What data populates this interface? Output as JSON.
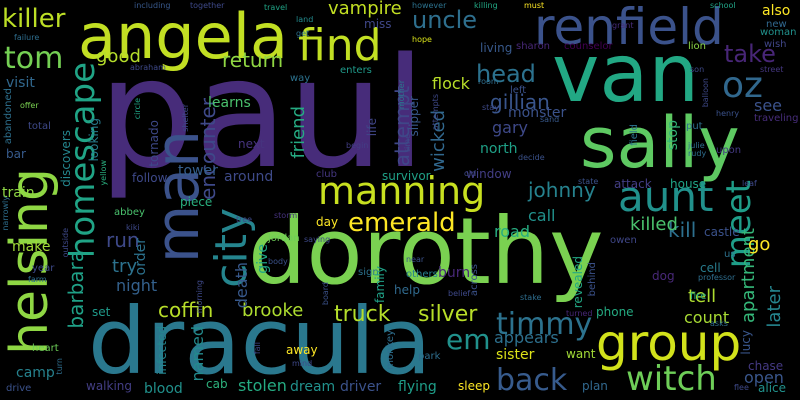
{
  "words": [
    {
      "text": "paul",
      "color": "#472c7a"
    },
    {
      "text": "dorothy",
      "color": "#7ad151"
    },
    {
      "text": "dracula",
      "color": "#2a788e"
    },
    {
      "text": "van",
      "color": "#22a884"
    },
    {
      "text": "sally",
      "color": "#5ec962"
    },
    {
      "text": "angela",
      "color": "#c2df23"
    },
    {
      "text": "renfield",
      "color": "#3b528b"
    },
    {
      "text": "man",
      "color": "#3b528b"
    },
    {
      "text": "helsing",
      "color": "#8fd744"
    },
    {
      "text": "group",
      "color": "#d2e21b"
    },
    {
      "text": "manning",
      "color": "#c8e020"
    },
    {
      "text": "aunt",
      "color": "#21918c"
    },
    {
      "text": "find",
      "color": "#c2df23"
    },
    {
      "text": "city",
      "color": "#25858e"
    },
    {
      "text": "homescape",
      "color": "#20a486"
    },
    {
      "text": "witch",
      "color": "#6ece58"
    },
    {
      "text": "meet",
      "color": "#1f9e89"
    },
    {
      "text": "emerald",
      "color": "#fde725"
    },
    {
      "text": "timmy",
      "color": "#2c728e"
    },
    {
      "text": "oz",
      "color": "#31688e"
    },
    {
      "text": "tom",
      "color": "#75d054"
    },
    {
      "text": "killer",
      "color": "#bddf26"
    },
    {
      "text": "uncle",
      "color": "#2e6f8e"
    },
    {
      "text": "back",
      "color": "#375b8d"
    },
    {
      "text": "head",
      "color": "#2c728e"
    },
    {
      "text": "take",
      "color": "#482677"
    },
    {
      "text": "johnny",
      "color": "#26828e"
    },
    {
      "text": "return",
      "color": "#90d743"
    },
    {
      "text": "coffin",
      "color": "#b8de29"
    },
    {
      "text": "truck",
      "color": "#b5de2b"
    },
    {
      "text": "silver",
      "color": "#b8de29"
    },
    {
      "text": "em",
      "color": "#21918c"
    },
    {
      "text": "gillian",
      "color": "#39558c"
    },
    {
      "text": "barbara",
      "color": "#1fa187"
    },
    {
      "text": "encounter",
      "color": "#3e4989"
    },
    {
      "text": "attempt",
      "color": "#3f4788"
    },
    {
      "text": "run",
      "color": "#3e4989"
    },
    {
      "text": "kill",
      "color": "#2d708e"
    },
    {
      "text": "killed",
      "color": "#4ac16d"
    },
    {
      "text": "apartment",
      "color": "#35b779"
    },
    {
      "text": "later",
      "color": "#25858e"
    },
    {
      "text": "go",
      "color": "#fde725"
    },
    {
      "text": "call",
      "color": "#21918c"
    },
    {
      "text": "tell",
      "color": "#addc30"
    },
    {
      "text": "open",
      "color": "#39568c"
    },
    {
      "text": "count",
      "color": "#a8db34"
    },
    {
      "text": "see",
      "color": "#3b528b"
    },
    {
      "text": "good",
      "color": "#b5de2b"
    },
    {
      "text": "try",
      "color": "#2c728e"
    },
    {
      "text": "night",
      "color": "#34618d"
    },
    {
      "text": "brooke",
      "color": "#addc30"
    },
    {
      "text": "friend",
      "color": "#25ab82"
    },
    {
      "text": "vampire",
      "color": "#c2df23"
    },
    {
      "text": "visit",
      "color": "#31688e"
    },
    {
      "text": "living",
      "color": "#38598c"
    },
    {
      "text": "flock",
      "color": "#b8de29"
    },
    {
      "text": "gary",
      "color": "#3e4989"
    },
    {
      "text": "wicked",
      "color": "#31688e"
    },
    {
      "text": "road",
      "color": "#27ad81"
    },
    {
      "text": "appears",
      "color": "#2d708e"
    },
    {
      "text": "sister",
      "color": "#dde318"
    },
    {
      "text": "stolen",
      "color": "#25ab82"
    },
    {
      "text": "dream",
      "color": "#21918c"
    },
    {
      "text": "driver",
      "color": "#3b528b"
    },
    {
      "text": "flying",
      "color": "#1f9e89"
    },
    {
      "text": "sleep",
      "color": "#fde725"
    },
    {
      "text": "make",
      "color": "#a2da37"
    },
    {
      "text": "learns",
      "color": "#4ac16d"
    },
    {
      "text": "tower",
      "color": "#355f8d"
    },
    {
      "text": "around",
      "color": "#3e4a89"
    },
    {
      "text": "death",
      "color": "#38598c"
    },
    {
      "text": "named",
      "color": "#238a8d"
    },
    {
      "text": "away",
      "color": "#fde725"
    },
    {
      "text": "blood",
      "color": "#21918c"
    },
    {
      "text": "cab",
      "color": "#2db27d"
    },
    {
      "text": "infected",
      "color": "#24868e"
    },
    {
      "text": "walking",
      "color": "#433e85"
    },
    {
      "text": "camp",
      "color": "#26828e"
    },
    {
      "text": "set",
      "color": "#1f9a8a"
    },
    {
      "text": "train",
      "color": "#8fd744"
    },
    {
      "text": "bar",
      "color": "#375b8d"
    },
    {
      "text": "order",
      "color": "#2c728e"
    },
    {
      "text": "give",
      "color": "#20a486"
    },
    {
      "text": "day",
      "color": "#fde725"
    },
    {
      "text": "help",
      "color": "#306a8e"
    },
    {
      "text": "burn",
      "color": "#482878"
    },
    {
      "text": "plan",
      "color": "#31688e"
    },
    {
      "text": "want",
      "color": "#a2da37"
    },
    {
      "text": "monster",
      "color": "#3b528b"
    },
    {
      "text": "north",
      "color": "#1fa187"
    },
    {
      "text": "house",
      "color": "#20a486"
    },
    {
      "text": "attack",
      "color": "#433e85"
    },
    {
      "text": "stop",
      "color": "#35b779"
    },
    {
      "text": "cell",
      "color": "#287c8e"
    },
    {
      "text": "lucy",
      "color": "#39568c"
    },
    {
      "text": "phone",
      "color": "#25ab82"
    },
    {
      "text": "revealed",
      "color": "#22a884"
    },
    {
      "text": "next",
      "color": "#46337e"
    },
    {
      "text": "follow",
      "color": "#3e4989"
    },
    {
      "text": "piece",
      "color": "#29af7f"
    },
    {
      "text": "survivor",
      "color": "#1fa187"
    },
    {
      "text": "window",
      "color": "#433e85"
    },
    {
      "text": "castle",
      "color": "#3b528b"
    },
    {
      "text": "chase",
      "color": "#443983"
    },
    {
      "text": "alice",
      "color": "#21918c"
    },
    {
      "text": "also",
      "color": "#fde725"
    },
    {
      "text": "new",
      "color": "#31688e"
    },
    {
      "text": "woman",
      "color": "#21918c"
    },
    {
      "text": "wish",
      "color": "#404688"
    },
    {
      "text": "life",
      "color": "#404688"
    },
    {
      "text": "slipper",
      "color": "#38598c"
    },
    {
      "text": "abbey",
      "color": "#4ac16d"
    },
    {
      "text": "jordan",
      "color": "#6ece58"
    },
    {
      "text": "storm",
      "color": "#46337e"
    },
    {
      "text": "tornado",
      "color": "#3e4989"
    },
    {
      "text": "looking",
      "color": "#287c8e"
    },
    {
      "text": "discovers",
      "color": "#24868e"
    },
    {
      "text": "outside",
      "color": "#3e4989"
    },
    {
      "text": "abandoned",
      "color": "#2d708e"
    },
    {
      "text": "total",
      "color": "#3e4989"
    },
    {
      "text": "offer",
      "color": "#7ad151"
    },
    {
      "text": "miss",
      "color": "#3f4788"
    },
    {
      "text": "however",
      "color": "#2c728e"
    },
    {
      "text": "killing",
      "color": "#22a884"
    },
    {
      "text": "must",
      "color": "#fde725"
    },
    {
      "text": "school",
      "color": "#20a486"
    },
    {
      "text": "travel",
      "color": "#20a486"
    },
    {
      "text": "including",
      "color": "#38598c"
    },
    {
      "text": "together",
      "color": "#3e4989"
    },
    {
      "text": "failure",
      "color": "#2e6e8e"
    },
    {
      "text": "land",
      "color": "#238a8d"
    },
    {
      "text": "enters",
      "color": "#1f9a8a"
    },
    {
      "text": "get",
      "color": "#2c728e"
    },
    {
      "text": "hope",
      "color": "#d8e219"
    },
    {
      "text": "sharon",
      "color": "#482878"
    },
    {
      "text": "counselor",
      "color": "#440154"
    },
    {
      "text": "grant",
      "color": "#472d7b"
    },
    {
      "text": "lion",
      "color": "#8bd646"
    },
    {
      "text": "son",
      "color": "#3e4989"
    },
    {
      "text": "street",
      "color": "#453781"
    },
    {
      "text": "balloon",
      "color": "#3e4989"
    },
    {
      "text": "traveling",
      "color": "#472d7b"
    },
    {
      "text": "henry",
      "color": "#3b528b"
    },
    {
      "text": "abraham",
      "color": "#3e4989"
    },
    {
      "text": "yellow",
      "color": "#29af7f"
    },
    {
      "text": "circle",
      "color": "#20a486"
    },
    {
      "text": "shelter",
      "color": "#3e4989"
    },
    {
      "text": "sand",
      "color": "#38598c"
    },
    {
      "text": "room",
      "color": "#2e6e8e"
    },
    {
      "text": "mother",
      "color": "#2a788e"
    },
    {
      "text": "begin",
      "color": "#433e85"
    },
    {
      "text": "put",
      "color": "#2e6e8e"
    },
    {
      "text": "field",
      "color": "#2c728e"
    },
    {
      "text": "julie",
      "color": "#2e6e8e"
    },
    {
      "text": "rudy",
      "color": "#2e6e8e"
    },
    {
      "text": "upon",
      "color": "#443a83"
    },
    {
      "text": "decide",
      "color": "#3b528b"
    },
    {
      "text": "leaf",
      "color": "#3e4989"
    },
    {
      "text": "us",
      "color": "#2c728e"
    },
    {
      "text": "owen",
      "color": "#3f4788"
    },
    {
      "text": "near",
      "color": "#3b528b"
    },
    {
      "text": "sign",
      "color": "#2c728e"
    },
    {
      "text": "others",
      "color": "#26828e"
    },
    {
      "text": "dog",
      "color": "#482878"
    },
    {
      "text": "professor",
      "color": "#2e6e8e"
    },
    {
      "text": "fire",
      "color": "#25ab82"
    },
    {
      "text": "asks",
      "color": "#2e6e8e"
    },
    {
      "text": "turned",
      "color": "#482878"
    },
    {
      "text": "stake",
      "color": "#2e6e8e"
    },
    {
      "text": "belief",
      "color": "#3e4989"
    },
    {
      "text": "park",
      "color": "#2e6e8e"
    },
    {
      "text": "across",
      "color": "#3b528b"
    },
    {
      "text": "behind",
      "color": "#3b528b"
    },
    {
      "text": "family",
      "color": "#1fa187"
    },
    {
      "text": "monkey",
      "color": "#2e6e8e"
    },
    {
      "text": "mind",
      "color": "#3e4989"
    },
    {
      "text": "fall",
      "color": "#3e4989"
    },
    {
      "text": "board",
      "color": "#3b528b"
    },
    {
      "text": "saying",
      "color": "#3e4989"
    },
    {
      "text": "body",
      "color": "#3b528b"
    },
    {
      "text": "tree",
      "color": "#3e4989"
    },
    {
      "text": "morning",
      "color": "#3e4989"
    },
    {
      "text": "kiki",
      "color": "#3e4989"
    },
    {
      "text": "year",
      "color": "#3e4989"
    },
    {
      "text": "farm",
      "color": "#2e6e8e"
    },
    {
      "text": "narrowly",
      "color": "#2e6e8e"
    },
    {
      "text": "heart",
      "color": "#6ece58"
    },
    {
      "text": "drive",
      "color": "#3b528b"
    },
    {
      "text": "turn",
      "color": "#2e6e8e"
    },
    {
      "text": "flee",
      "color": "#3e4989"
    },
    {
      "text": "club",
      "color": "#453781"
    },
    {
      "text": "old",
      "color": "#3e4989"
    },
    {
      "text": "state",
      "color": "#3b528b"
    },
    {
      "text": "way",
      "color": "#2c728e"
    },
    {
      "text": "left",
      "color": "#3b528b"
    },
    {
      "text": "stay",
      "color": "#3e4989"
    },
    {
      "text": "time",
      "color": "#3e4989"
    },
    {
      "text": "attempts",
      "color": "#3e4989"
    }
  ]
}
